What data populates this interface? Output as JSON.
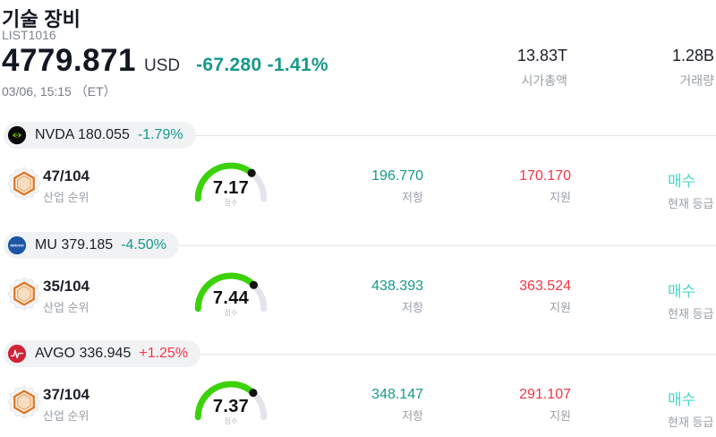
{
  "header": {
    "title": "기술 장비",
    "list_id": "LIST1016",
    "price": "4779.871",
    "currency": "USD",
    "change": "-67.280 -1.41%",
    "datetime": "03/06, 15:15 （ET）",
    "stats": [
      {
        "value": "13.83T",
        "label": "시가총액"
      },
      {
        "value": "1.28B",
        "label": "거래량"
      }
    ]
  },
  "labels": {
    "rank": "산업 순위",
    "score": "점수",
    "resistance": "저항",
    "support": "지원",
    "rating": "현재 등급"
  },
  "colors": {
    "negative_teal": "#17998a",
    "positive_red": "#f23645",
    "rating_cyan": "#47d7c6",
    "gauge_green": "#3cd20a"
  },
  "rows": [
    {
      "symbol": "NVDA",
      "price": "180.055",
      "change": "-1.79%",
      "rank": "47/104",
      "score": 7.17,
      "resistance": "196.770",
      "support": "170.170",
      "rating": "매수"
    },
    {
      "symbol": "MU",
      "price": "379.185",
      "change": "-4.50%",
      "rank": "35/104",
      "score": 7.44,
      "resistance": "438.393",
      "support": "363.524",
      "rating": "매수"
    },
    {
      "symbol": "AVGO",
      "price": "336.945",
      "change": "+1.25%",
      "rank": "37/104",
      "score": 7.37,
      "resistance": "348.147",
      "support": "291.107",
      "rating": "매수"
    }
  ]
}
